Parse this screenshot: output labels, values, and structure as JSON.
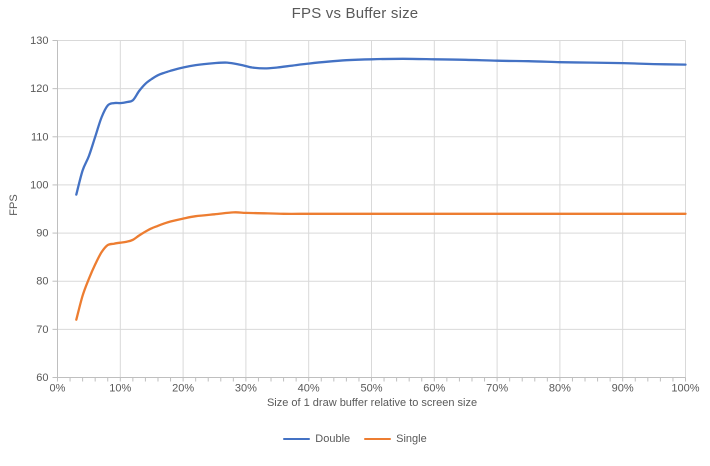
{
  "chart_data": {
    "type": "line",
    "title": "FPS vs Buffer size",
    "xlabel": "Size of 1 draw buffer relative to screen size",
    "ylabel": "FPS",
    "xlim": [
      0,
      100
    ],
    "ylim": [
      60,
      130
    ],
    "x_tick_labels": [
      "0%",
      "10%",
      "20%",
      "30%",
      "40%",
      "50%",
      "60%",
      "70%",
      "80%",
      "90%",
      "100%"
    ],
    "x_tick_values": [
      0,
      10,
      20,
      30,
      40,
      50,
      60,
      70,
      80,
      90,
      100
    ],
    "x_minor_tick_step": 2,
    "y_tick_values": [
      60,
      70,
      80,
      90,
      100,
      110,
      120,
      130
    ],
    "grid": true,
    "legend_position": "bottom",
    "series": [
      {
        "name": "Double",
        "color": "#4472C4",
        "points": [
          [
            3,
            98
          ],
          [
            4,
            103
          ],
          [
            5,
            106
          ],
          [
            6,
            110
          ],
          [
            7,
            114
          ],
          [
            8,
            116.5
          ],
          [
            9,
            117
          ],
          [
            10,
            117
          ],
          [
            11,
            117.2
          ],
          [
            12,
            117.6
          ],
          [
            13,
            119.5
          ],
          [
            14,
            121
          ],
          [
            15,
            122
          ],
          [
            16,
            122.8
          ],
          [
            17,
            123.3
          ],
          [
            18,
            123.7
          ],
          [
            20,
            124.4
          ],
          [
            22,
            124.9
          ],
          [
            25,
            125.3
          ],
          [
            27,
            125.4
          ],
          [
            29,
            125
          ],
          [
            31,
            124.4
          ],
          [
            33,
            124.2
          ],
          [
            35,
            124.4
          ],
          [
            38,
            124.9
          ],
          [
            40,
            125.2
          ],
          [
            43,
            125.6
          ],
          [
            46,
            125.9
          ],
          [
            50,
            126.1
          ],
          [
            55,
            126.2
          ],
          [
            60,
            126.1
          ],
          [
            65,
            126
          ],
          [
            70,
            125.8
          ],
          [
            75,
            125.7
          ],
          [
            80,
            125.5
          ],
          [
            85,
            125.4
          ],
          [
            90,
            125.3
          ],
          [
            95,
            125.1
          ],
          [
            100,
            125
          ]
        ]
      },
      {
        "name": "Single",
        "color": "#ED7D31",
        "points": [
          [
            3,
            72
          ],
          [
            4,
            77
          ],
          [
            5,
            80.5
          ],
          [
            6,
            83.5
          ],
          [
            7,
            86
          ],
          [
            8,
            87.5
          ],
          [
            9,
            87.8
          ],
          [
            10,
            88
          ],
          [
            11,
            88.2
          ],
          [
            12,
            88.6
          ],
          [
            13,
            89.5
          ],
          [
            14,
            90.3
          ],
          [
            15,
            91
          ],
          [
            16,
            91.5
          ],
          [
            17,
            92
          ],
          [
            18,
            92.4
          ],
          [
            20,
            93
          ],
          [
            22,
            93.5
          ],
          [
            25,
            93.9
          ],
          [
            28,
            94.3
          ],
          [
            30,
            94.2
          ],
          [
            33,
            94.1
          ],
          [
            36,
            94
          ],
          [
            40,
            94
          ],
          [
            45,
            94
          ],
          [
            50,
            94
          ],
          [
            55,
            94
          ],
          [
            60,
            94
          ],
          [
            65,
            94
          ],
          [
            70,
            94
          ],
          [
            75,
            94
          ],
          [
            80,
            94
          ],
          [
            85,
            94
          ],
          [
            90,
            94
          ],
          [
            95,
            94
          ],
          [
            100,
            94
          ]
        ]
      }
    ],
    "colors": {
      "background": "#FFFFFF",
      "gridline": "#D9D9D9",
      "axis_line": "#BFBFBF",
      "tick_mark": "#BFBFBF",
      "text": "#595959",
      "title": "#595959"
    }
  }
}
